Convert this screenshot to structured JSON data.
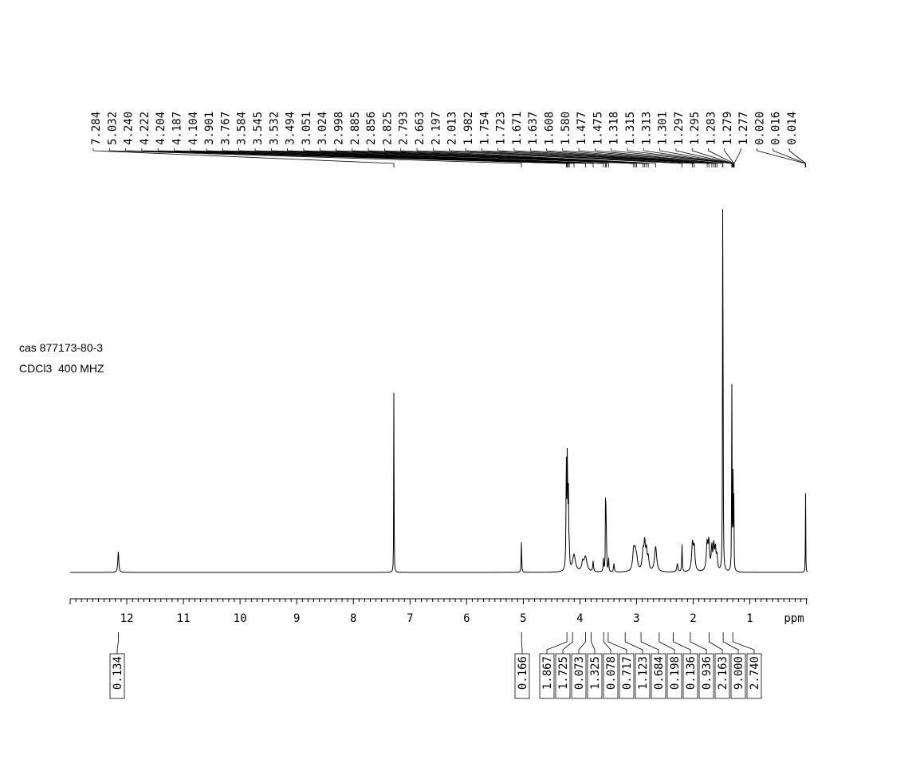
{
  "sample": {
    "cas": "cas 877173-80-3",
    "solvent": "CDCl3  400 MHZ"
  },
  "chart_data": {
    "type": "line",
    "title": "",
    "xlabel": "ppm",
    "ylabel": "",
    "x_reversed": true,
    "xlim": [
      13.0,
      -0.02
    ],
    "x_ticks": [
      12,
      11,
      10,
      9,
      8,
      7,
      6,
      5,
      4,
      3,
      2,
      1
    ],
    "x_tick_labels": [
      "12",
      "11",
      "10",
      "9",
      "8",
      "7",
      "6",
      "5",
      "4",
      "3",
      "2",
      "1"
    ],
    "grid": false,
    "peak_labels": [
      "7.284",
      "5.032",
      "4.240",
      "4.222",
      "4.204",
      "4.187",
      "4.104",
      "3.901",
      "3.767",
      "3.584",
      "3.545",
      "3.532",
      "3.494",
      "3.051",
      "3.024",
      "2.998",
      "2.885",
      "2.856",
      "2.825",
      "2.793",
      "2.663",
      "2.197",
      "2.013",
      "1.982",
      "1.754",
      "1.723",
      "1.671",
      "1.637",
      "1.608",
      "1.580",
      "1.477",
      "1.475",
      "1.318",
      "1.315",
      "1.313",
      "1.301",
      "1.297",
      "1.295",
      "1.283",
      "1.279",
      "1.277",
      "0.020",
      "0.016",
      "0.014"
    ],
    "peaks": [
      {
        "ppm": 12.15,
        "height": 0.1,
        "width": 0.01
      },
      {
        "ppm": 7.284,
        "height": 1.0,
        "width": 0.003
      },
      {
        "ppm": 5.032,
        "height": 0.15,
        "width": 0.005
      },
      {
        "ppm": 4.24,
        "height": 0.52,
        "width": 0.006
      },
      {
        "ppm": 4.222,
        "height": 0.53,
        "width": 0.006
      },
      {
        "ppm": 4.204,
        "height": 0.36,
        "width": 0.006
      },
      {
        "ppm": 4.187,
        "height": 0.08,
        "width": 0.006
      },
      {
        "ppm": 4.104,
        "height": 0.08,
        "width": 0.03
      },
      {
        "ppm": 3.95,
        "height": 0.04,
        "width": 0.02
      },
      {
        "ppm": 3.901,
        "height": 0.07,
        "width": 0.03
      },
      {
        "ppm": 3.767,
        "height": 0.05,
        "width": 0.008
      },
      {
        "ppm": 3.584,
        "height": 0.06,
        "width": 0.006
      },
      {
        "ppm": 3.545,
        "height": 0.55,
        "width": 0.004
      },
      {
        "ppm": 3.532,
        "height": 0.2,
        "width": 0.004
      },
      {
        "ppm": 3.494,
        "height": 0.07,
        "width": 0.006
      },
      {
        "ppm": 3.4,
        "height": 0.04,
        "width": 0.008
      },
      {
        "ppm": 3.051,
        "height": 0.09,
        "width": 0.02
      },
      {
        "ppm": 3.024,
        "height": 0.07,
        "width": 0.02
      },
      {
        "ppm": 2.998,
        "height": 0.05,
        "width": 0.02
      },
      {
        "ppm": 2.885,
        "height": 0.09,
        "width": 0.018
      },
      {
        "ppm": 2.856,
        "height": 0.12,
        "width": 0.014
      },
      {
        "ppm": 2.825,
        "height": 0.09,
        "width": 0.014
      },
      {
        "ppm": 2.793,
        "height": 0.06,
        "width": 0.014
      },
      {
        "ppm": 2.663,
        "height": 0.12,
        "width": 0.022
      },
      {
        "ppm": 2.28,
        "height": 0.04,
        "width": 0.012
      },
      {
        "ppm": 2.197,
        "height": 0.13,
        "width": 0.006
      },
      {
        "ppm": 2.013,
        "height": 0.13,
        "width": 0.016
      },
      {
        "ppm": 1.982,
        "height": 0.11,
        "width": 0.016
      },
      {
        "ppm": 1.754,
        "height": 0.13,
        "width": 0.016
      },
      {
        "ppm": 1.723,
        "height": 0.13,
        "width": 0.014
      },
      {
        "ppm": 1.671,
        "height": 0.11,
        "width": 0.012
      },
      {
        "ppm": 1.637,
        "height": 0.12,
        "width": 0.012
      },
      {
        "ppm": 1.608,
        "height": 0.1,
        "width": 0.012
      },
      {
        "ppm": 1.58,
        "height": 0.07,
        "width": 0.012
      },
      {
        "ppm": 1.477,
        "height": 1.85,
        "width": 0.004
      },
      {
        "ppm": 1.475,
        "height": 0.5,
        "width": 0.004
      },
      {
        "ppm": 1.318,
        "height": 0.9,
        "width": 0.004
      },
      {
        "ppm": 1.297,
        "height": 0.45,
        "width": 0.004
      },
      {
        "ppm": 1.283,
        "height": 0.35,
        "width": 0.004
      },
      {
        "ppm": 0.016,
        "height": 0.4,
        "width": 0.003
      }
    ],
    "integrals": [
      {
        "ppm": 12.15,
        "label": "0.134"
      },
      {
        "ppm": 5.03,
        "label": "0.166"
      },
      {
        "ppm": 4.23,
        "label": "1.867"
      },
      {
        "ppm": 4.13,
        "label": "1.725"
      },
      {
        "ppm": 3.9,
        "label": "0.073"
      },
      {
        "ppm": 3.8,
        "label": "1.325"
      },
      {
        "ppm": 3.58,
        "label": "0.078"
      },
      {
        "ppm": 3.5,
        "label": "0.717"
      },
      {
        "ppm": 3.2,
        "label": "1.123"
      },
      {
        "ppm": 2.92,
        "label": "0.684"
      },
      {
        "ppm": 2.6,
        "label": "0.198"
      },
      {
        "ppm": 2.35,
        "label": "0.136"
      },
      {
        "ppm": 2.05,
        "label": "0.936"
      },
      {
        "ppm": 1.72,
        "label": "2.163"
      },
      {
        "ppm": 1.47,
        "label": "9.000"
      },
      {
        "ppm": 1.3,
        "label": "2.740"
      }
    ]
  }
}
